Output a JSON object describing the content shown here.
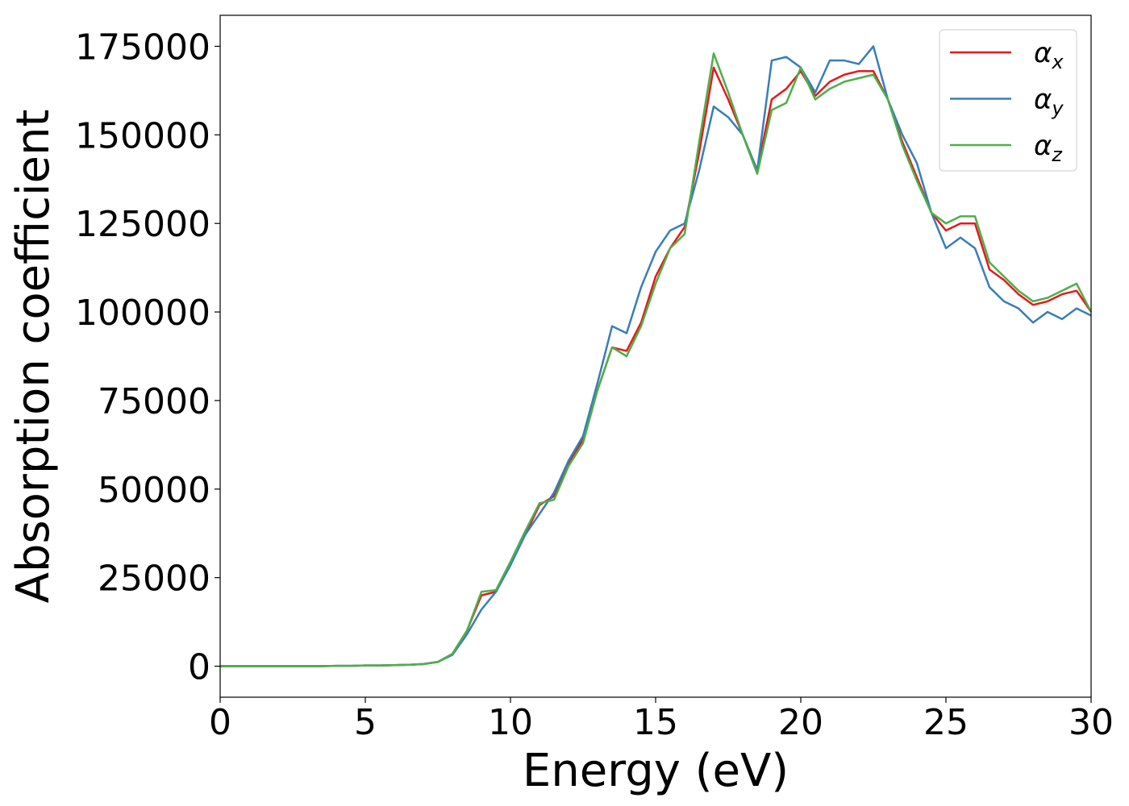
{
  "chart_data": {
    "type": "line",
    "xlabel": "Energy (eV)",
    "ylabel": "Absorption coefficient",
    "x": [
      0,
      0.5,
      1,
      1.5,
      2,
      2.5,
      3,
      3.5,
      4,
      4.5,
      5,
      5.5,
      6,
      6.5,
      7,
      7.5,
      8,
      8.5,
      9,
      9.5,
      10,
      10.5,
      11,
      11.5,
      12,
      12.5,
      13,
      13.5,
      14,
      14.5,
      15,
      15.5,
      16,
      16.5,
      17,
      17.5,
      18,
      18.5,
      19,
      19.5,
      20,
      20.5,
      21,
      21.5,
      22,
      22.5,
      23,
      23.5,
      24,
      24.5,
      25,
      25.5,
      26,
      26.5,
      27,
      27.5,
      28,
      28.5,
      29,
      29.5,
      30
    ],
    "series": [
      {
        "name": "αx",
        "color": "#e41a1c",
        "values": [
          0,
          0,
          0,
          0,
          0,
          0,
          0,
          0,
          100,
          100,
          200,
          200,
          300,
          400,
          600,
          1200,
          3500,
          10000,
          20000,
          21000,
          29000,
          37000,
          45500,
          48000,
          57000,
          64000,
          78000,
          90000,
          89000,
          97000,
          110000,
          118000,
          124000,
          145000,
          169000,
          160000,
          150000,
          140000,
          160000,
          163000,
          168000,
          161000,
          165000,
          167000,
          168000,
          168000,
          160000,
          148000,
          138000,
          128000,
          123000,
          125000,
          125000,
          112000,
          109000,
          105000,
          102000,
          103000,
          105000,
          106000,
          100000
        ]
      },
      {
        "name": "αy",
        "color": "#377eb8",
        "values": [
          0,
          0,
          0,
          0,
          0,
          0,
          0,
          0,
          100,
          100,
          200,
          200,
          300,
          400,
          600,
          1200,
          3200,
          9000,
          16000,
          21000,
          28500,
          37000,
          43000,
          49000,
          58000,
          65000,
          80000,
          96000,
          94000,
          107000,
          117000,
          123000,
          125000,
          140000,
          158000,
          155000,
          150000,
          140000,
          171000,
          172000,
          169000,
          162000,
          171000,
          171000,
          170000,
          175000,
          160000,
          150000,
          142000,
          128000,
          118000,
          121000,
          118000,
          107000,
          103000,
          101000,
          97000,
          100000,
          98000,
          101000,
          99000
        ]
      },
      {
        "name": "αz",
        "color": "#4daf4a",
        "values": [
          0,
          0,
          0,
          0,
          0,
          0,
          0,
          0,
          100,
          100,
          200,
          200,
          300,
          400,
          600,
          1200,
          3500,
          10000,
          21000,
          21500,
          29500,
          38000,
          46000,
          47000,
          56500,
          63000,
          78000,
          90000,
          87500,
          96000,
          108000,
          118000,
          122000,
          148000,
          173000,
          162000,
          150000,
          139000,
          157000,
          159000,
          169000,
          160000,
          163000,
          165000,
          166000,
          167000,
          160000,
          147000,
          137000,
          128000,
          125000,
          127000,
          127000,
          114000,
          110000,
          106000,
          103000,
          104000,
          106000,
          108000,
          100000
        ]
      }
    ],
    "xlim": [
      0,
      30
    ],
    "xticks": [
      0,
      5,
      10,
      15,
      20,
      25,
      30
    ],
    "ylim": [
      -8750,
      183750
    ],
    "yticks": [
      0,
      25000,
      50000,
      75000,
      100000,
      125000,
      150000,
      175000
    ],
    "legend": "upper right"
  }
}
